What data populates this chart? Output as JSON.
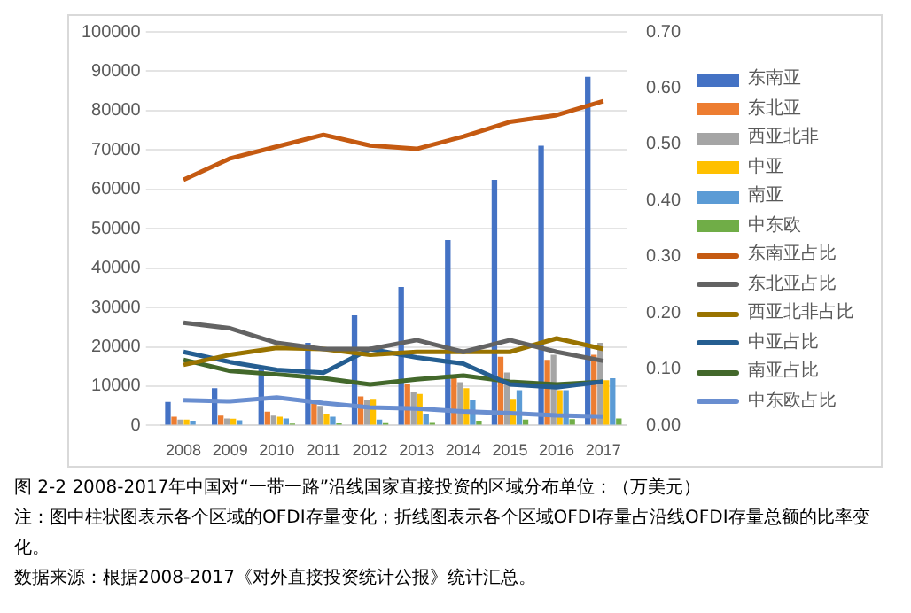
{
  "chart_data": {
    "type": "bar",
    "title": "图 2-2 2008-2017年中国对“一带一路”沿线国家直接投资的区域分布单位：（万美元）",
    "annotations": [
      "注：图中柱状图表示各个区域的OFDI存量变化；折线图表示各个区域OFDI存量占沿线OFDI存量总额的比率变化。",
      "数据来源：根据2008-2017《对外直接投资统计公报》统计汇总。"
    ],
    "categories": [
      "2008",
      "2009",
      "2010",
      "2011",
      "2012",
      "2013",
      "2014",
      "2015",
      "2016",
      "2017"
    ],
    "series": [
      {
        "name": "东南亚",
        "color": "#4472c4",
        "values": [
          6000,
          9500,
          14300,
          21000,
          28000,
          35200,
          47100,
          62400,
          71100,
          88600
        ]
      },
      {
        "name": "东北亚",
        "color": "#ed7d31",
        "values": [
          2200,
          2500,
          3500,
          5500,
          7400,
          10500,
          12000,
          17500,
          16700,
          18000
        ]
      },
      {
        "name": "西亚北非",
        "color": "#a5a5a5",
        "values": [
          1500,
          1800,
          2500,
          5000,
          6500,
          8500,
          11000,
          13500,
          18000,
          21000
        ]
      },
      {
        "name": "中亚",
        "color": "#ffc000",
        "values": [
          1500,
          1700,
          2200,
          3000,
          6800,
          8000,
          9500,
          6800,
          9000,
          11500
        ]
      },
      {
        "name": "南亚",
        "color": "#5b9bd5",
        "values": [
          1200,
          1300,
          1800,
          2200,
          1500,
          3000,
          6500,
          9000,
          9000,
          12000
        ]
      },
      {
        "name": "中东欧",
        "color": "#70ad47",
        "values": [
          null,
          null,
          500,
          600,
          800,
          900,
          1200,
          1500,
          1600,
          1800
        ]
      },
      {
        "name": "东南亚占比",
        "type": "line",
        "axis": "y2",
        "color": "#c55a11",
        "values": [
          0.437,
          0.475,
          0.496,
          0.517,
          0.498,
          0.492,
          0.514,
          0.54,
          0.552,
          0.577
        ]
      },
      {
        "name": "东北亚占比",
        "type": "line",
        "axis": "y2",
        "color": "#636363",
        "values": [
          0.183,
          0.173,
          0.147,
          0.136,
          0.136,
          0.152,
          0.131,
          0.152,
          0.131,
          0.115
        ]
      },
      {
        "name": "西亚北非占比",
        "type": "line",
        "axis": "y2",
        "color": "#997300",
        "values": [
          0.108,
          0.126,
          0.138,
          0.136,
          0.126,
          0.131,
          0.131,
          0.131,
          0.155,
          0.136
        ]
      },
      {
        "name": "中亚占比",
        "type": "line",
        "axis": "y2",
        "color": "#255e91",
        "values": [
          0.131,
          0.113,
          0.099,
          0.094,
          0.136,
          0.121,
          0.11,
          0.073,
          0.068,
          0.078
        ]
      },
      {
        "name": "南亚占比",
        "type": "line",
        "axis": "y2",
        "color": "#43682b",
        "values": [
          0.117,
          0.097,
          0.091,
          0.084,
          0.073,
          0.082,
          0.089,
          0.078,
          0.073,
          0.078
        ]
      },
      {
        "name": "中东欧占比",
        "type": "line",
        "axis": "y2",
        "color": "#698ed0",
        "values": [
          0.045,
          0.043,
          0.05,
          0.04,
          0.032,
          0.03,
          0.025,
          0.022,
          0.018,
          0.016
        ]
      }
    ],
    "ylim": [
      0,
      100000
    ],
    "yticks": [
      0,
      10000,
      20000,
      30000,
      40000,
      50000,
      60000,
      70000,
      80000,
      90000,
      100000
    ],
    "y2lim": [
      0,
      0.7
    ],
    "y2ticks": [
      {
        "value": 0,
        "label": "0.00"
      },
      {
        "value": 0.1,
        "label": "0.10"
      },
      {
        "value": 0.2,
        "label": "0.20"
      },
      {
        "value": 0.3,
        "label": "0.30"
      },
      {
        "value": 0.4,
        "label": "0.40"
      },
      {
        "value": 0.5,
        "label": "0.50"
      },
      {
        "value": 0.6,
        "label": "0.60"
      },
      {
        "value": 0.7,
        "label": "0.70"
      }
    ],
    "grid": "y",
    "legend": "right"
  }
}
